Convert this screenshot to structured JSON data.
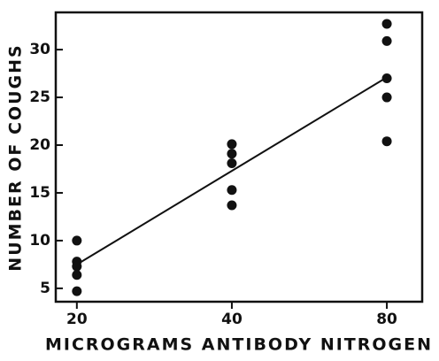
{
  "chart_data": {
    "type": "scatter",
    "xlabel": "MICROGRAMS ANTIBODY NITROGEN",
    "ylabel": "NUMBER OF COUGHS",
    "xscale": "log",
    "xlim": [
      18.2,
      93.7
    ],
    "xticks": [
      20,
      40,
      80
    ],
    "ylim": [
      3.6,
      33.9
    ],
    "yticks": [
      5,
      10,
      15,
      20,
      25,
      30
    ],
    "color": "#111111",
    "series": [
      {
        "x": [
          20,
          20,
          20,
          20,
          20,
          40,
          40,
          40,
          40,
          40,
          80,
          80,
          80,
          80,
          80
        ],
        "values": [
          10.0,
          7.8,
          7.3,
          6.4,
          4.7,
          20.1,
          19.1,
          18.1,
          15.3,
          13.7,
          32.7,
          30.9,
          27.0,
          25.0,
          20.4
        ]
      }
    ],
    "fit_line": {
      "x": [
        20,
        80
      ],
      "values": [
        7.5,
        27.1
      ]
    }
  }
}
